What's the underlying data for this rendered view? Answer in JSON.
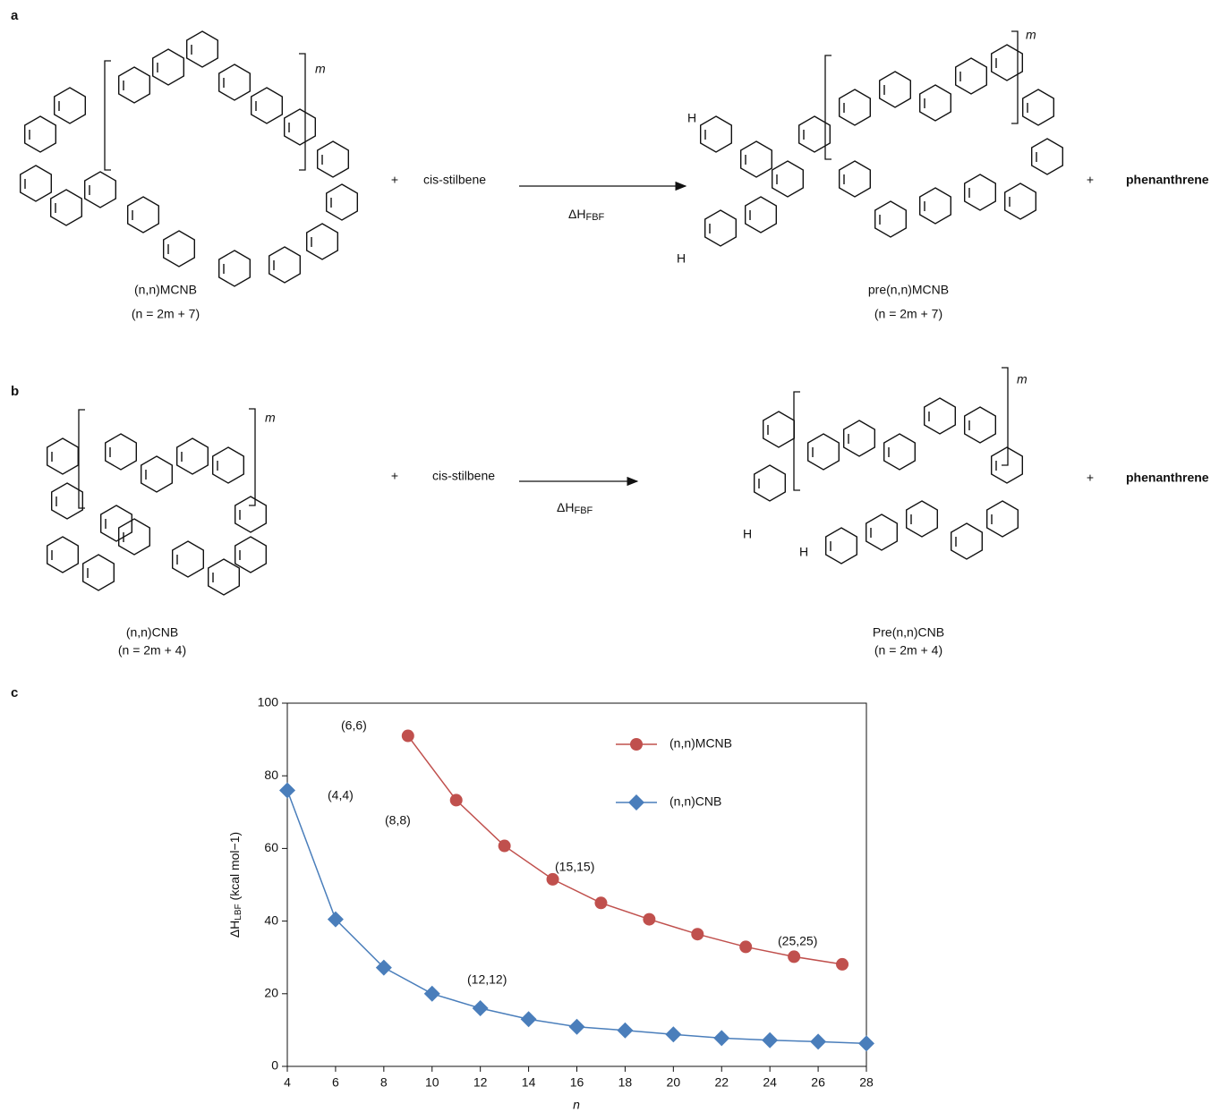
{
  "panel_a": {
    "label": "a",
    "repeat_left": "m",
    "plus_1": "+",
    "reagent": "cis-stilbene",
    "arrow_label": "ΔH",
    "arrow_label_sub": "FBF",
    "h_top": "H",
    "h_bottom": "H",
    "repeat_right": "m",
    "plus_2": "+",
    "product": "phenanthrene",
    "reactant_name": "(n,n)MCNB",
    "reactant_formula": "(n = 2m + 7)",
    "intermediate_name": "pre(n,n)MCNB",
    "intermediate_formula": "(n = 2m + 7)"
  },
  "panel_b": {
    "label": "b",
    "repeat_left": "m",
    "plus_1": "+",
    "reagent": "cis-stilbene",
    "arrow_label": "ΔH",
    "arrow_label_sub": "FBF",
    "h_top": "H",
    "h_bottom": "H",
    "repeat_right": "m",
    "plus_2": "+",
    "product": "phenanthrene",
    "reactant_name": "(n,n)CNB",
    "reactant_formula": "(n = 2m + 4)",
    "intermediate_name": "Pre(n,n)CNB",
    "intermediate_formula": "(n = 2m + 4)"
  },
  "panel_c": {
    "label": "c"
  },
  "chart_data": {
    "type": "line",
    "x_label": "n",
    "y_label": {
      "main": "ΔH",
      "sub": "LBF",
      "unit": " (kcal mol−1)"
    },
    "xlim": [
      4,
      28
    ],
    "xticks": [
      4,
      6,
      8,
      10,
      12,
      14,
      16,
      18,
      20,
      22,
      24,
      26,
      28
    ],
    "ylim": [
      0,
      100
    ],
    "yticks": [
      0,
      20,
      40,
      60,
      80,
      100
    ],
    "legend": "upper right",
    "series": [
      {
        "name": "(n,n)MCNB",
        "color": "#c0504d",
        "marker": "circle",
        "x": [
          9,
          11,
          13,
          15,
          17,
          19,
          21,
          23,
          25,
          27
        ],
        "values": [
          91,
          73.3,
          60.7,
          51.5,
          45,
          40.5,
          36.4,
          32.9,
          30.2,
          28.1
        ]
      },
      {
        "name": "(n,n)CNB",
        "color": "#4a7ebb",
        "marker": "diamond",
        "x": [
          4,
          6,
          8,
          10,
          12,
          14,
          16,
          18,
          20,
          22,
          24,
          26,
          28
        ],
        "values": [
          76,
          40.5,
          27.2,
          20,
          16,
          13,
          10.9,
          9.9,
          8.8,
          7.8,
          7.2,
          6.8,
          6.3
        ]
      }
    ],
    "annotations": [
      {
        "text": "(4,4)"
      },
      {
        "text": "(6,6)"
      },
      {
        "text": "(8,8)"
      },
      {
        "text": "(12,12)"
      },
      {
        "text": "(15,15)"
      },
      {
        "text": "(25,25)"
      }
    ]
  }
}
